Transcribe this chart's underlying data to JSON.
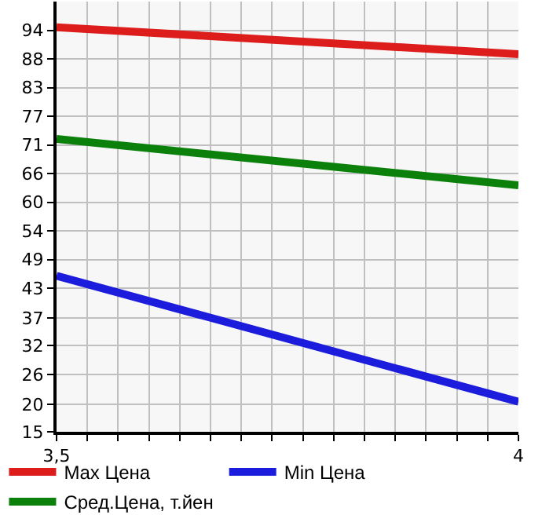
{
  "chart_data": {
    "type": "line",
    "x": [
      3.5,
      4
    ],
    "series": [
      {
        "name": "Max Цена",
        "color": "#dd1c1c",
        "values": [
          94.6,
          89.3
        ]
      },
      {
        "name": "Min Цена",
        "color": "#1c1cdd",
        "values": [
          45.7,
          20.9
        ]
      },
      {
        "name": "Сред.Цена, т.йен",
        "color": "#0b800b",
        "values": [
          72.6,
          63.5
        ]
      }
    ],
    "xlim": [
      3.5,
      4
    ],
    "xticks": [
      {
        "value": 3.5,
        "label": "3,5"
      },
      {
        "value": 3.5333,
        "label": null
      },
      {
        "value": 3.5667,
        "label": null
      },
      {
        "value": 3.6,
        "label": null
      },
      {
        "value": 3.6333,
        "label": null
      },
      {
        "value": 3.6667,
        "label": null
      },
      {
        "value": 3.7,
        "label": null
      },
      {
        "value": 3.7333,
        "label": null
      },
      {
        "value": 3.7667,
        "label": null
      },
      {
        "value": 3.8,
        "label": null
      },
      {
        "value": 3.8333,
        "label": null
      },
      {
        "value": 3.8667,
        "label": null
      },
      {
        "value": 3.9,
        "label": null
      },
      {
        "value": 3.9333,
        "label": null
      },
      {
        "value": 3.9667,
        "label": null
      },
      4
    ],
    "ylim": [
      15,
      99.64
    ],
    "yticks": [
      15,
      {
        "value": 20.4,
        "label": "20"
      },
      {
        "value": 26.29,
        "label": "26"
      },
      {
        "value": 31.93,
        "label": "32"
      },
      {
        "value": 37.4,
        "label": "37"
      },
      {
        "value": 43.21,
        "label": "43"
      },
      {
        "value": 48.86,
        "label": "49"
      },
      {
        "value": 54.5,
        "label": "54"
      },
      {
        "value": 60.14,
        "label": "60"
      },
      {
        "value": 65.79,
        "label": "66"
      },
      {
        "value": 71.43,
        "label": "71"
      },
      {
        "value": 77.07,
        "label": "77"
      },
      {
        "value": 82.71,
        "label": "83"
      },
      {
        "value": 88.36,
        "label": "88"
      },
      94
    ],
    "grid": true,
    "legend": "bottom",
    "marker": "none",
    "line_style": "solid"
  }
}
